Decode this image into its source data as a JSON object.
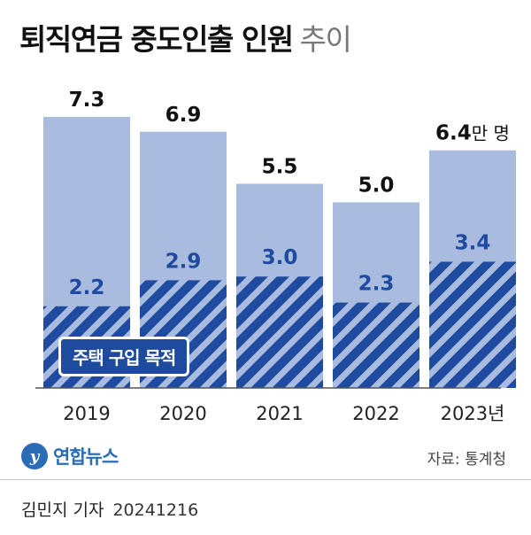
{
  "title_bold": "퇴직연금 중도인출 인원",
  "title_light": "추이",
  "legend_label": "주택 구입 목적",
  "source": "자료: 통계청",
  "logo_text": "연합뉴스",
  "logo_mark": "y",
  "byline_name": "김민지 기자",
  "byline_date": "20241216",
  "colors": {
    "total_bar": "#a9bcdf",
    "housing_bar": "#1e4ba0",
    "housing_label": "#1e4ba0",
    "total_label": "#111111"
  },
  "chart_data": {
    "type": "bar",
    "stacked": "overlay",
    "categories": [
      "2019",
      "2020",
      "2021",
      "2022",
      "2023년"
    ],
    "unit": "만 명",
    "series": [
      {
        "name": "",
        "values": [
          7.3,
          6.9,
          5.5,
          5.0,
          6.4
        ]
      },
      {
        "name": "주택 구입 목적",
        "values": [
          2.2,
          2.9,
          3.0,
          2.3,
          3.4
        ]
      }
    ],
    "total_labels": [
      "7.3",
      "6.9",
      "5.5",
      "5.0",
      "6.4"
    ],
    "housing_labels": [
      "2.2",
      "2.9",
      "3.0",
      "2.3",
      "3.4"
    ],
    "ylim": [
      0,
      7.3
    ],
    "grid": false
  }
}
